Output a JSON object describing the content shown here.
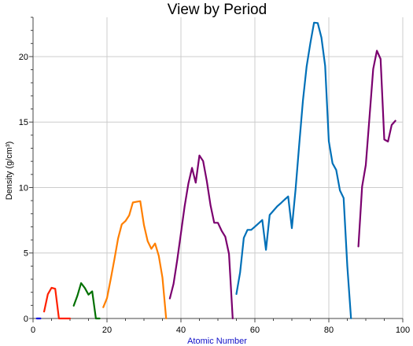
{
  "chart_data": {
    "type": "line",
    "title": "View by Period",
    "xlabel": "Atomic Number",
    "ylabel": "Density (g/cm³)",
    "xlim": [
      0,
      100
    ],
    "ylim": [
      0,
      23
    ],
    "x_ticks": [
      "0",
      "20",
      "40",
      "60",
      "80",
      "100"
    ],
    "y_ticks": [
      "0",
      "5",
      "10",
      "15",
      "20"
    ],
    "grid": true,
    "legend": "none",
    "xlabel_color": "#1010c8",
    "series": [
      {
        "color": "#0000e0",
        "x": [
          1,
          2
        ],
        "y": [
          0.0001,
          0.0002
        ]
      },
      {
        "color": "#ff2000",
        "x": [
          3,
          4,
          5,
          6,
          7,
          8,
          9,
          10
        ],
        "y": [
          0.53,
          1.85,
          2.34,
          2.27,
          0.001,
          0.001,
          0.002,
          0.001
        ]
      },
      {
        "color": "#007000",
        "x": [
          11,
          12,
          13,
          14,
          15,
          16,
          17,
          18
        ],
        "y": [
          0.97,
          1.74,
          2.7,
          2.33,
          1.82,
          2.07,
          0.003,
          0.002
        ]
      },
      {
        "color": "#ff7f00",
        "x": [
          19,
          20,
          21,
          22,
          23,
          24,
          25,
          26,
          27,
          28,
          29,
          30,
          31,
          32,
          33,
          34,
          35,
          36
        ],
        "y": [
          0.86,
          1.55,
          2.99,
          4.51,
          6.11,
          7.19,
          7.44,
          7.87,
          8.86,
          8.91,
          8.96,
          7.13,
          5.91,
          5.32,
          5.73,
          4.79,
          3.12,
          0.004
        ]
      },
      {
        "color": "#7b006f",
        "x": [
          37,
          38,
          39,
          40,
          41,
          42,
          43,
          44,
          45,
          46,
          47,
          48,
          49,
          50,
          51,
          52,
          53,
          54
        ],
        "y": [
          1.53,
          2.64,
          4.47,
          6.51,
          8.57,
          10.28,
          11.5,
          10.37,
          12.45,
          12.02,
          10.49,
          8.65,
          7.31,
          7.31,
          6.7,
          6.24,
          4.93,
          0.006
        ]
      },
      {
        "color": "#0070b8",
        "x": [
          55,
          56,
          57,
          58,
          59,
          60,
          61,
          62,
          63,
          64,
          65,
          66,
          67,
          68,
          69,
          70,
          71,
          72,
          73,
          74,
          75,
          76,
          77,
          78,
          79,
          80,
          81,
          82,
          83,
          84,
          85,
          86
        ],
        "y": [
          1.87,
          3.51,
          6.15,
          6.77,
          6.77,
          7.01,
          7.26,
          7.52,
          5.24,
          7.9,
          8.23,
          8.55,
          8.8,
          9.07,
          9.32,
          6.9,
          9.84,
          13.31,
          16.65,
          19.25,
          21.02,
          22.59,
          22.56,
          21.45,
          19.3,
          13.53,
          11.85,
          11.34,
          9.78,
          9.2,
          4.0,
          0.01
        ]
      },
      {
        "color": "#7b006f",
        "x": [
          88,
          89,
          90,
          91,
          92,
          93,
          94,
          95,
          96,
          97,
          98
        ],
        "y": [
          5.5,
          10.07,
          11.72,
          15.37,
          19.05,
          20.45,
          19.82,
          13.67,
          13.51,
          14.78,
          15.1
        ]
      }
    ]
  }
}
